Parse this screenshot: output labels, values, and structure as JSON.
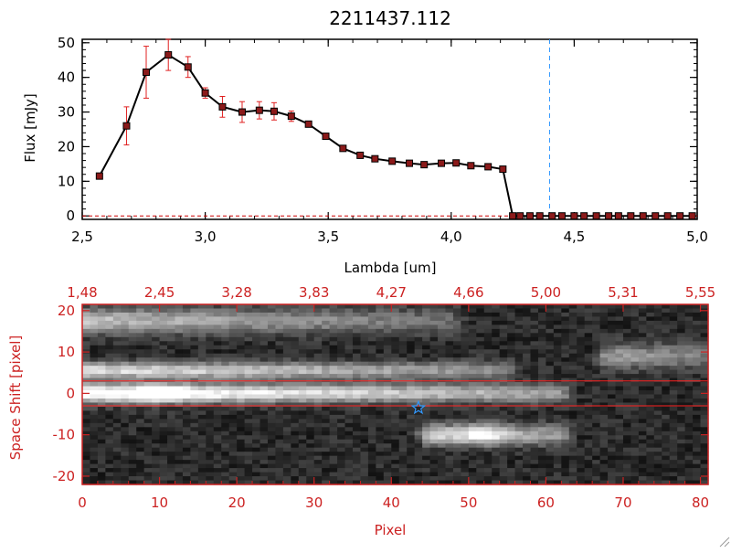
{
  "chart_data": [
    {
      "type": "line",
      "title": "2211437.112",
      "xlabel": "Lambda [um]",
      "ylabel": "Flux [mJy]",
      "xlim": [
        2.5,
        5.0
      ],
      "ylim": [
        -1,
        51
      ],
      "xticks": [
        "2.5",
        "3.0",
        "3.5",
        "4.0",
        "4.5",
        "5.0"
      ],
      "yticks": [
        "0",
        "10",
        "20",
        "30",
        "40",
        "50"
      ],
      "marker_line_x": 4.4,
      "colors": {
        "line": "#000000",
        "marker": "#8b1a1a",
        "errorbar": "#e02020",
        "marker_line": "#3399ff",
        "zero_line": "#cc0000"
      },
      "series": [
        {
          "x": [
            2.57,
            2.68,
            2.76,
            2.85,
            2.93,
            3.0,
            3.07,
            3.15,
            3.22,
            3.28,
            3.35,
            3.42,
            3.49,
            3.56,
            3.63,
            3.69,
            3.76,
            3.83,
            3.89,
            3.96,
            4.02,
            4.08,
            4.15,
            4.21,
            4.25,
            4.28,
            4.32,
            4.36,
            4.41,
            4.45,
            4.5,
            4.54,
            4.59,
            4.64,
            4.68,
            4.73,
            4.78,
            4.83,
            4.88,
            4.93,
            4.98
          ],
          "values": [
            11.5,
            26,
            41.5,
            46.5,
            43,
            35.5,
            31.5,
            30,
            30.5,
            30.2,
            28.8,
            26.5,
            23,
            19.5,
            17.5,
            16.5,
            15.8,
            15.2,
            14.8,
            15.2,
            15.3,
            14.5,
            14.2,
            13.5,
            0,
            0,
            0,
            0,
            0,
            0,
            0,
            0,
            0,
            0,
            0,
            0,
            0,
            0,
            0,
            0,
            0
          ],
          "errors": [
            0.8,
            5.5,
            7.5,
            4.5,
            3,
            1.5,
            3,
            3,
            2.5,
            2.5,
            1.5,
            0.8,
            0.8,
            0.8,
            0.6,
            0.5,
            0.5,
            0.5,
            0.5,
            0.5,
            0.5,
            0.5,
            0.5,
            0.5,
            0,
            0,
            0,
            0,
            0,
            0,
            0,
            0,
            0,
            0,
            0,
            0,
            0,
            0,
            0,
            0,
            0
          ]
        }
      ]
    },
    {
      "type": "heatmap",
      "xlabel": "Pixel",
      "ylabel": "Space Shift [pixel]",
      "xlim": [
        0,
        81
      ],
      "ylim": [
        -22,
        21.5
      ],
      "xticks": [
        "0",
        "10",
        "20",
        "30",
        "40",
        "50",
        "60",
        "70",
        "80"
      ],
      "yticks": [
        "-20",
        "-10",
        "0",
        "10",
        "20"
      ],
      "top_ticks": [
        "1.48",
        "2.45",
        "3.28",
        "3.83",
        "4.27",
        "4.66",
        "5.00",
        "5.31",
        "5.55"
      ],
      "aperture_lines_y": [
        -3,
        3
      ],
      "star_marker": {
        "x": 43.5,
        "y": -3.5
      },
      "colors": {
        "axis": "#cc2222",
        "aperture": "#ff2222",
        "star": "#3399ff"
      },
      "features": [
        {
          "x0": 0,
          "x1": 62,
          "y": 0,
          "width": 2.2,
          "peak": 1.0,
          "decay": 0.55
        },
        {
          "x0": 0,
          "x1": 55,
          "y": 5.5,
          "width": 2.0,
          "peak": 0.75,
          "decay": 0.5
        },
        {
          "x0": 0,
          "x1": 48,
          "y": 17.5,
          "width": 3.0,
          "peak": 0.6,
          "decay": 0.6
        },
        {
          "x0": 45,
          "x1": 62,
          "y": -10,
          "width": 2.5,
          "peak": 0.7,
          "decay": 0.4
        },
        {
          "x0": 68,
          "x1": 81,
          "y": 9,
          "width": 3.0,
          "peak": 0.45,
          "decay": 0.3
        }
      ]
    }
  ]
}
